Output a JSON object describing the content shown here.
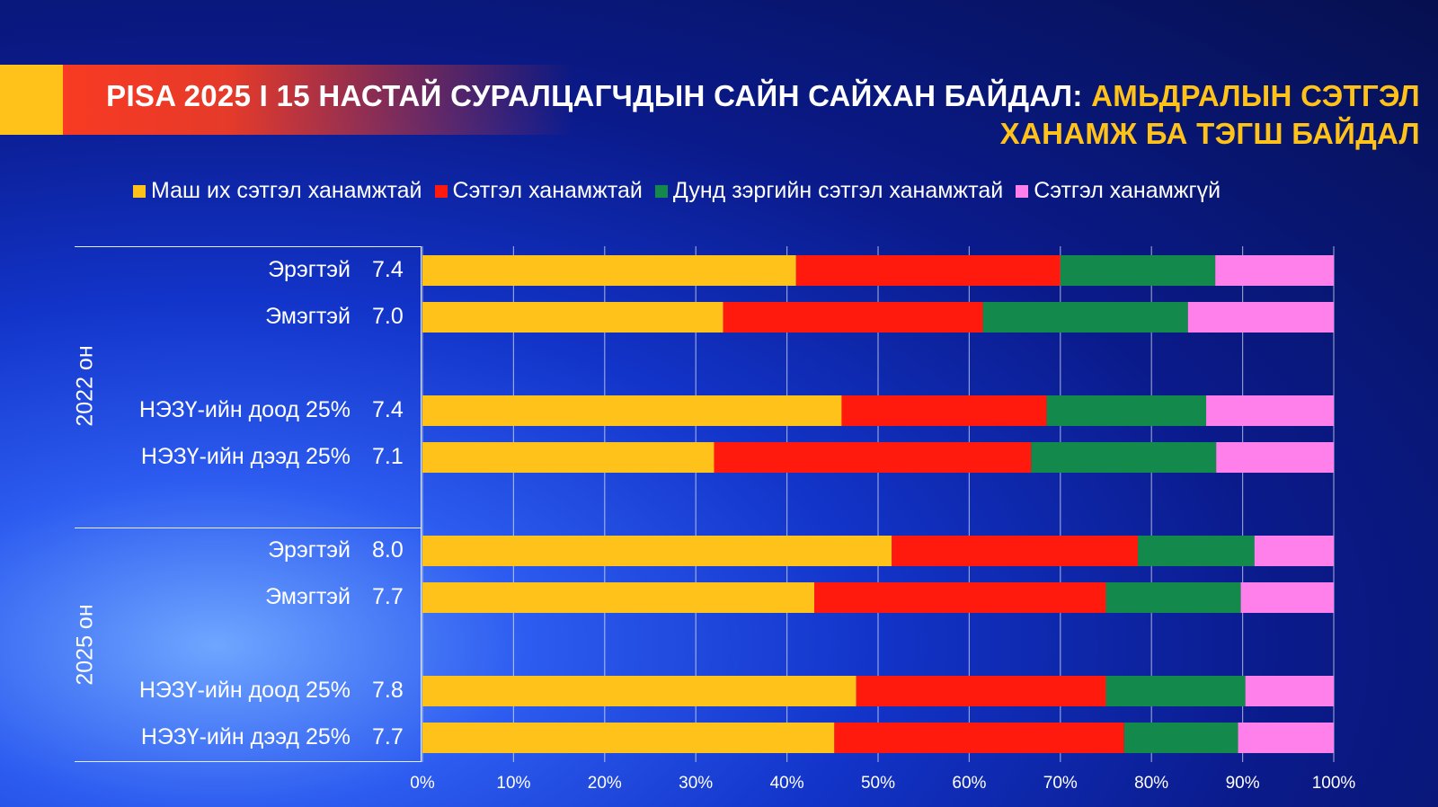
{
  "title": {
    "part1": "PISA 2025 I 15 НАСТАЙ СУРАЛЦАГЧДЫН САЙН САЙХАН БАЙДАЛ: ",
    "part2": "АМЬДРАЛЫН СЭТГЭЛ",
    "line2": "ХАНАМЖ БА ТЭГШ БАЙДАЛ"
  },
  "colors": {
    "very_satisfied": "#ffc21a",
    "satisfied": "#ff1a0d",
    "moderately_satisfied": "#138a4c",
    "not_satisfied": "#ff80ea",
    "accent_title": "#ffc21a"
  },
  "chart_data": {
    "type": "bar",
    "orientation": "horizontal",
    "stacked": true,
    "percent": true,
    "xlim": [
      0,
      100
    ],
    "xticks": [
      "0%",
      "10%",
      "20%",
      "30%",
      "40%",
      "50%",
      "60%",
      "70%",
      "80%",
      "90%",
      "100%"
    ],
    "grid": true,
    "legend_position": "top",
    "series": [
      {
        "name": "Маш их сэтгэл ханамжтай",
        "color": "#ffc21a"
      },
      {
        "name": "Сэтгэл ханамжтай",
        "color": "#ff1a0d"
      },
      {
        "name": "Дунд зэргийн сэтгэл ханамжтай",
        "color": "#138a4c"
      },
      {
        "name": "Сэтгэл ханамжгүй",
        "color": "#ff80ea"
      }
    ],
    "groups": [
      {
        "label": "2022 он",
        "rows": [
          {
            "label": "Эрэгтэй",
            "score": "7.4",
            "values": [
              41,
              29,
              17,
              13
            ]
          },
          {
            "label": "Эмэгтэй",
            "score": "7.0",
            "values": [
              33,
              28.5,
              22.5,
              16
            ]
          },
          {
            "label": "НЭЗҮ-ийн доод 25%",
            "score": "7.4",
            "values": [
              46,
              22.5,
              17.5,
              14
            ]
          },
          {
            "label": "НЭЗҮ-ийн дээд 25%",
            "score": "7.1",
            "values": [
              32,
              34.8,
              20.3,
              12.9
            ]
          }
        ]
      },
      {
        "label": "2025 он",
        "rows": [
          {
            "label": "Эрэгтэй",
            "score": "8.0",
            "values": [
              51.5,
              27,
              12.8,
              8.7
            ]
          },
          {
            "label": "Эмэгтэй",
            "score": "7.7",
            "values": [
              43,
              32,
              14.8,
              10.2
            ]
          },
          {
            "label": "НЭЗҮ-ийн доод 25%",
            "score": "7.8",
            "values": [
              47.6,
              27.4,
              15.3,
              9.7
            ]
          },
          {
            "label": "НЭЗҮ-ийн дээд 25%",
            "score": "7.7",
            "values": [
              45.2,
              31.8,
              12.5,
              10.5
            ]
          }
        ]
      }
    ]
  }
}
